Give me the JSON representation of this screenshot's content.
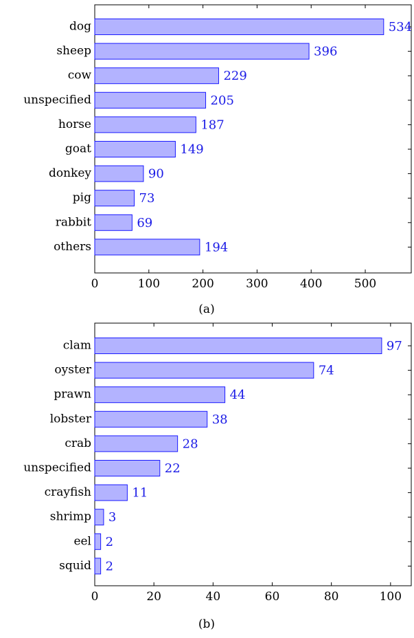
{
  "chart_data": [
    {
      "type": "bar",
      "orientation": "horizontal",
      "caption": "(a)",
      "categories": [
        "dog",
        "sheep",
        "cow",
        "unspecified",
        "horse",
        "goat",
        "donkey",
        "pig",
        "rabbit",
        "others"
      ],
      "values": [
        534,
        396,
        229,
        205,
        187,
        149,
        90,
        73,
        69,
        194
      ],
      "xlim": [
        0,
        585
      ],
      "xticks": [
        0,
        100,
        200,
        300,
        400,
        500
      ],
      "grid": false,
      "colors": {
        "bar_fill": "#b3b3ff",
        "bar_stroke": "#1a1aff",
        "label": "#1a1ae6"
      }
    },
    {
      "type": "bar",
      "orientation": "horizontal",
      "caption": "(b)",
      "categories": [
        "clam",
        "oyster",
        "prawn",
        "lobster",
        "crab",
        "unspecified",
        "crayfish",
        "shrimp",
        "eel",
        "squid"
      ],
      "values": [
        97,
        74,
        44,
        38,
        28,
        22,
        11,
        3,
        2,
        2
      ],
      "xlim": [
        0,
        107
      ],
      "xticks": [
        0,
        20,
        40,
        60,
        80,
        100
      ],
      "grid": false,
      "colors": {
        "bar_fill": "#b3b3ff",
        "bar_stroke": "#1a1aff",
        "label": "#1a1ae6"
      }
    }
  ]
}
